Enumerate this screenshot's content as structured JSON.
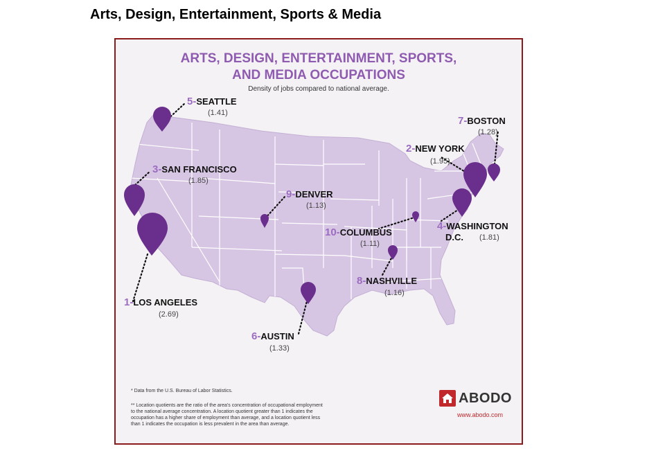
{
  "page": {
    "heading": "Arts, Design, Entertainment, Sports & Media"
  },
  "infographic": {
    "title_line1": "ARTS, DESIGN, ENTERTAINMENT, SPORTS,",
    "title_line2": "AND MEDIA OCCUPATIONS",
    "subtitle": "Density of jobs compared to national average.",
    "colors": {
      "title": "#8f5bb0",
      "map_fill": "#d7c6e3",
      "map_border": "#ffffff",
      "pin": "#6a2f8c",
      "frame": "#8b1a1a",
      "rank": "#9b6cc0"
    }
  },
  "cities": [
    {
      "rank": "1-",
      "name": "LOS ANGELES",
      "value": "(2.69)",
      "quotient": 2.69
    },
    {
      "rank": "2-",
      "name": "NEW YORK",
      "value": "(1.95)",
      "quotient": 1.95
    },
    {
      "rank": "3-",
      "name": "SAN FRANCISCO",
      "value": "(1.85)",
      "quotient": 1.85
    },
    {
      "rank": "4-",
      "name": "WASHINGTON",
      "name2": "D.C.",
      "value": "(1.81)",
      "quotient": 1.81
    },
    {
      "rank": "5-",
      "name": "SEATTLE",
      "value": "(1.41)",
      "quotient": 1.41
    },
    {
      "rank": "6-",
      "name": "AUSTIN",
      "value": "(1.33)",
      "quotient": 1.33
    },
    {
      "rank": "7-",
      "name": "BOSTON",
      "value": "(1.28)",
      "quotient": 1.28
    },
    {
      "rank": "8-",
      "name": "NASHVILLE",
      "value": "(1.16)",
      "quotient": 1.16
    },
    {
      "rank": "9-",
      "name": "DENVER",
      "value": "(1.13)",
      "quotient": 1.13
    },
    {
      "rank": "10-",
      "name": "COLUMBUS",
      "value": "(1.11)",
      "quotient": 1.11
    }
  ],
  "footnotes": {
    "note1": "* Data from the U.S. Bureau of Labor Statistics.",
    "note2_l1": "** Location quotients are the ratio of the area's concentration of occupational employment",
    "note2_l2": "to the national average concentration. A location quotient greater than 1 indicates the",
    "note2_l3": "occupation has a higher share of employment than average, and a location quotient less",
    "note2_l4": "than 1 indicates the occupation is less prevalent in the area than average."
  },
  "brand": {
    "name": "ABODO",
    "url": "www.abodo.com",
    "icon": "house-icon"
  }
}
